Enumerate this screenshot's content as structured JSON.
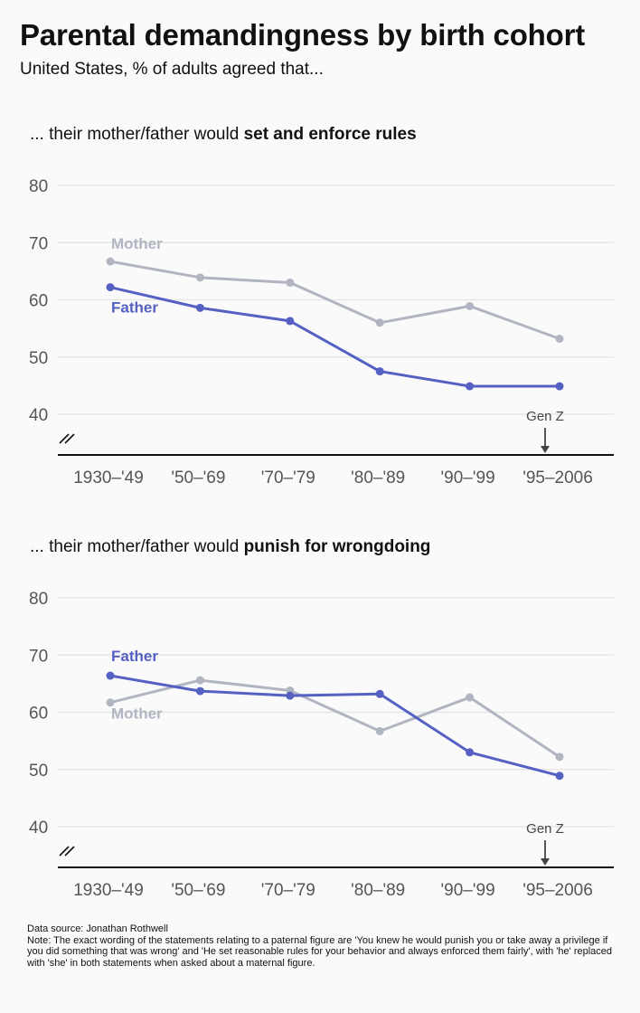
{
  "title": "Parental demandingness by birth cohort",
  "subtitle": "United States, % of adults agreed that...",
  "panels": [
    {
      "prefix": "... their mother/father would ",
      "emphasis": "set and enforce rules"
    },
    {
      "prefix": "... their mother/father would ",
      "emphasis": "punish for wrongdoing"
    }
  ],
  "footer": {
    "source": "Data source: Jonathan Rothwell",
    "note": "Note: The exact wording of the statements relating to a paternal figure are 'You knew he would punish you or take away a privilege if you did something that was wrong' and 'He set reasonable rules for your behavior and always enforced them fairly', with 'he' replaced with 'she' in both statements when asked about a maternal figure."
  },
  "colors": {
    "mother": "#b0b5c1",
    "father": "#5560c3",
    "grid": "#e6e6e6",
    "axis": "#111111",
    "tick": "#555555"
  },
  "chart_data": [
    {
      "type": "line",
      "categories": [
        "1930–'49",
        "'50–'69",
        "'70–'79",
        "'80–'89",
        "'90–'99",
        "'95–2006"
      ],
      "yticks": [
        40,
        50,
        60,
        70,
        80
      ],
      "ylim": [
        33,
        80
      ],
      "grid": true,
      "axis_break": true,
      "annotation": {
        "text": "Gen Z",
        "category": 5
      },
      "series": [
        {
          "name": "Mother",
          "color": "#b0b5c1",
          "values": [
            66.7,
            63.9,
            63.0,
            56.0,
            58.9,
            53.2
          ]
        },
        {
          "name": "Father",
          "color": "#5560c3",
          "values": [
            62.2,
            58.6,
            56.3,
            47.5,
            44.9,
            44.9
          ]
        }
      ]
    },
    {
      "type": "line",
      "categories": [
        "1930–'49",
        "'50–'69",
        "'70–'79",
        "'80–'89",
        "'90–'99",
        "'95–2006"
      ],
      "yticks": [
        40,
        50,
        60,
        70,
        80
      ],
      "ylim": [
        33,
        80
      ],
      "grid": true,
      "axis_break": true,
      "annotation": {
        "text": "Gen Z",
        "category": 5
      },
      "series": [
        {
          "name": "Mother",
          "color": "#b0b5c1",
          "values": [
            61.7,
            65.6,
            63.8,
            56.7,
            62.6,
            52.2
          ]
        },
        {
          "name": "Father",
          "color": "#5560c3",
          "values": [
            66.4,
            63.7,
            62.9,
            63.2,
            53.0,
            48.9
          ]
        }
      ]
    }
  ]
}
